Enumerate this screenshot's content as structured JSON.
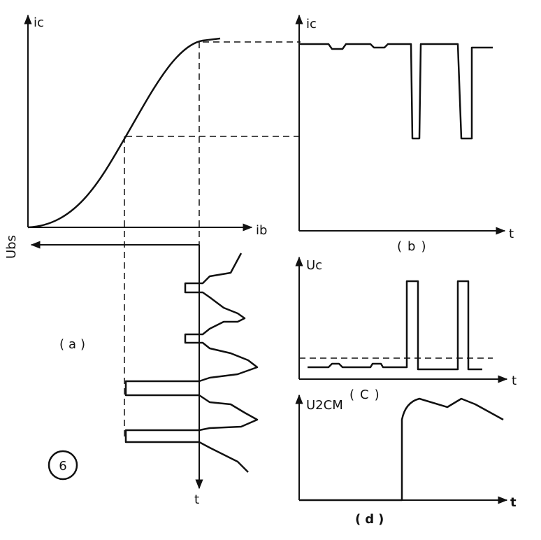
{
  "panel_a": {
    "y_axis": "ic",
    "x_axis": "ib",
    "lower_axis": "Ubs",
    "time_axis": "t",
    "caption": "(a)"
  },
  "panel_b": {
    "y_axis": "ic",
    "x_axis": "t",
    "caption": "(b)"
  },
  "panel_c": {
    "y_axis": "Uc",
    "x_axis": "t",
    "caption": "(C)"
  },
  "panel_d": {
    "y_axis": "U2CM",
    "x_axis": "t",
    "caption": "(d)"
  },
  "figure_number": "6"
}
